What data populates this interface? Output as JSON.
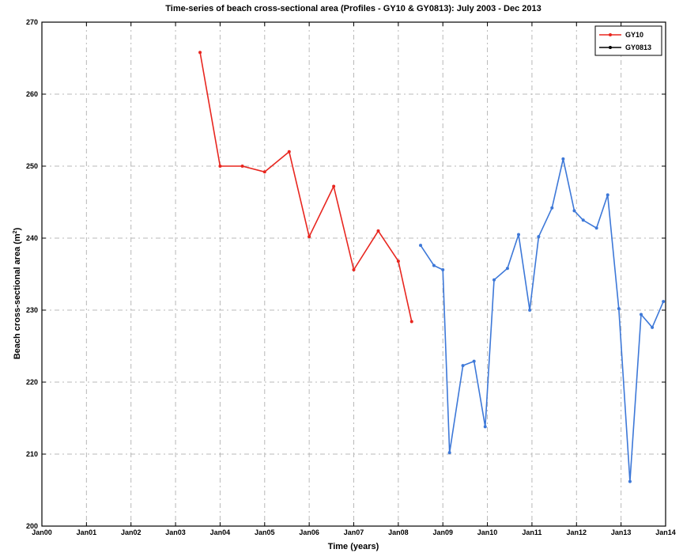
{
  "chart_data": {
    "type": "line",
    "title": "Time-series of beach cross-sectional area (Profiles - GY10 & GY0813): July 2003 - Dec 2013",
    "xlabel": "Time (years)",
    "ylabel_prefix": "Beach cross-sectional area (m",
    "ylabel_sup": "2",
    "ylabel_suffix": ")",
    "xlim": [
      2000,
      2014
    ],
    "ylim": [
      200,
      270
    ],
    "x_ticks": [
      {
        "value": 2000,
        "label": "Jan00"
      },
      {
        "value": 2001,
        "label": "Jan01"
      },
      {
        "value": 2002,
        "label": "Jan02"
      },
      {
        "value": 2003,
        "label": "Jan03"
      },
      {
        "value": 2004,
        "label": "Jan04"
      },
      {
        "value": 2005,
        "label": "Jan05"
      },
      {
        "value": 2006,
        "label": "Jan06"
      },
      {
        "value": 2007,
        "label": "Jan07"
      },
      {
        "value": 2008,
        "label": "Jan08"
      },
      {
        "value": 2009,
        "label": "Jan09"
      },
      {
        "value": 2010,
        "label": "Jan10"
      },
      {
        "value": 2011,
        "label": "Jan11"
      },
      {
        "value": 2012,
        "label": "Jan12"
      },
      {
        "value": 2013,
        "label": "Jan13"
      },
      {
        "value": 2014,
        "label": "Jan14"
      }
    ],
    "y_ticks": [
      200,
      210,
      220,
      230,
      240,
      250,
      260,
      270
    ],
    "grid": true,
    "legend_position": "top-right",
    "series": [
      {
        "name": "GY10",
        "color": "#e8261f",
        "legend_color": "#e8261f",
        "x": [
          2003.55,
          2004.0,
          2004.5,
          2005.0,
          2005.55,
          2006.0,
          2006.55,
          2007.0,
          2007.55,
          2008.0,
          2008.3
        ],
        "y": [
          265.8,
          250.0,
          250.0,
          249.2,
          252.0,
          240.2,
          247.2,
          235.6,
          241.0,
          236.8,
          228.4
        ]
      },
      {
        "name": "GY0813",
        "color": "#3d78d8",
        "legend_color": "#000000",
        "x": [
          2008.5,
          2008.8,
          2009.0,
          2009.15,
          2009.45,
          2009.7,
          2009.95,
          2010.15,
          2010.45,
          2010.7,
          2010.95,
          2011.15,
          2011.45,
          2011.7,
          2011.95,
          2012.15,
          2012.45,
          2012.7,
          2012.95,
          2013.2,
          2013.45,
          2013.7,
          2013.95
        ],
        "y": [
          239.0,
          236.2,
          235.6,
          210.2,
          222.3,
          222.9,
          213.8,
          234.2,
          235.8,
          240.5,
          230.0,
          240.2,
          244.2,
          251.0,
          243.8,
          242.5,
          241.4,
          246.0,
          230.2,
          206.2,
          229.4,
          227.6,
          231.2
        ]
      }
    ]
  }
}
